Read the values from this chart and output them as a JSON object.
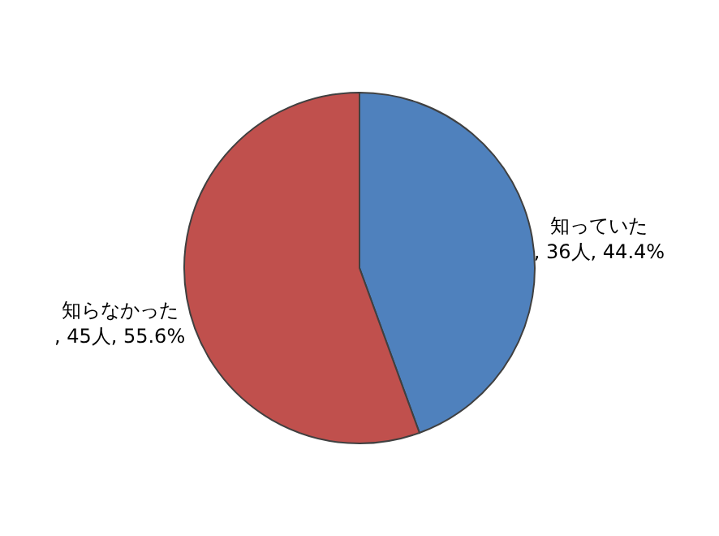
{
  "chart_data": {
    "type": "pie",
    "categories": [
      "知っていた",
      "知らなかった"
    ],
    "values": [
      36,
      45
    ],
    "colors": [
      "#4f81bd",
      "#c0504d"
    ],
    "value_labels": [
      ", 36人, 44.4%",
      ", 45人, 55.6%"
    ]
  }
}
